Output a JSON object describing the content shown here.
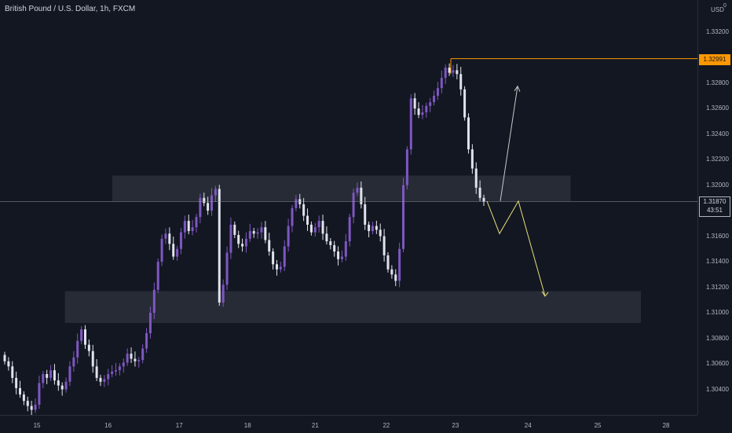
{
  "header": {
    "title": "British Pound / U.S. Dollar, 1h, FXCM"
  },
  "price_axis": {
    "currency": "USD",
    "currency_superscript": "0"
  },
  "last_price": {
    "value": "1.31870",
    "countdown": "43:51"
  },
  "session_high": {
    "value": "1.32991"
  },
  "colors": {
    "background": "#131722",
    "candle_up": "#7e57c2",
    "candle_down": "#e0e3eb",
    "zone": "#2a2e39",
    "high_line": "#ff9800",
    "projection_yellow": "#e8e07a",
    "projection_white": "#c8c8c8"
  },
  "chart_data": {
    "type": "candlestick",
    "title": "British Pound / U.S. Dollar, 1h, FXCM",
    "ylim": [
      1.302,
      1.3345
    ],
    "yticks": [
      "1.33200",
      "1.32800",
      "1.32600",
      "1.32400",
      "1.32200",
      "1.32000",
      "1.31600",
      "1.31400",
      "1.31200",
      "1.31000",
      "1.30800",
      "1.30600",
      "1.30400"
    ],
    "xticks": [
      "15",
      "16",
      "17",
      "18",
      "21",
      "22",
      "23",
      "24",
      "25",
      "28"
    ],
    "close_series": [
      1.3062,
      1.3058,
      1.3049,
      1.3041,
      1.3036,
      1.3031,
      1.3027,
      1.3024,
      1.3028,
      1.3045,
      1.3052,
      1.3049,
      1.3055,
      1.3047,
      1.3043,
      1.304,
      1.3046,
      1.3058,
      1.3065,
      1.3078,
      1.3087,
      1.3075,
      1.307,
      1.3058,
      1.3049,
      1.3046,
      1.3048,
      1.3052,
      1.3054,
      1.3055,
      1.3058,
      1.3061,
      1.3068,
      1.3064,
      1.3062,
      1.3063,
      1.3072,
      1.3084,
      1.31,
      1.3118,
      1.314,
      1.3158,
      1.3162,
      1.3154,
      1.3144,
      1.315,
      1.3163,
      1.3172,
      1.3164,
      1.3167,
      1.3175,
      1.319,
      1.3186,
      1.318,
      1.3192,
      1.3197,
      1.3108,
      1.3122,
      1.3147,
      1.3169,
      1.3161,
      1.3154,
      1.3152,
      1.3158,
      1.3164,
      1.3162,
      1.3163,
      1.3167,
      1.3157,
      1.3148,
      1.3138,
      1.3134,
      1.3136,
      1.3152,
      1.3168,
      1.3182,
      1.3189,
      1.3185,
      1.3176,
      1.3169,
      1.3163,
      1.3167,
      1.3172,
      1.3162,
      1.3156,
      1.3153,
      1.3148,
      1.3142,
      1.3144,
      1.3156,
      1.3175,
      1.3194,
      1.3198,
      1.3185,
      1.3169,
      1.3164,
      1.3168,
      1.3165,
      1.316,
      1.3145,
      1.3134,
      1.313,
      1.3125,
      1.315,
      1.32,
      1.3228,
      1.3268,
      1.326,
      1.3255,
      1.3257,
      1.3262,
      1.3265,
      1.327,
      1.3276,
      1.3284,
      1.3292,
      1.3288,
      1.329,
      1.3287,
      1.3275,
      1.3253,
      1.3228,
      1.3213,
      1.3198,
      1.319,
      1.3187
    ],
    "zones": [
      {
        "y_top": 1.32075,
        "y_bottom": 1.31875,
        "x_start": "16/17",
        "x_end": "24/25"
      },
      {
        "y_top": 1.3117,
        "y_bottom": 1.3092,
        "x_start": "16",
        "x_end": "25"
      }
    ],
    "horizontal_lines": [
      {
        "label": "high",
        "y": 1.32991
      },
      {
        "label": "last",
        "y": 1.3187
      }
    ],
    "projections": [
      {
        "name": "bearish",
        "points": [
          [
            1.31875,
            "23"
          ],
          [
            1.3162,
            "23/24"
          ],
          [
            1.31875,
            "24"
          ],
          [
            1.3113,
            "24/25"
          ]
        ]
      },
      {
        "name": "bullish",
        "points": [
          [
            1.31875,
            "23/24"
          ],
          [
            1.32775,
            "24"
          ]
        ]
      }
    ]
  }
}
